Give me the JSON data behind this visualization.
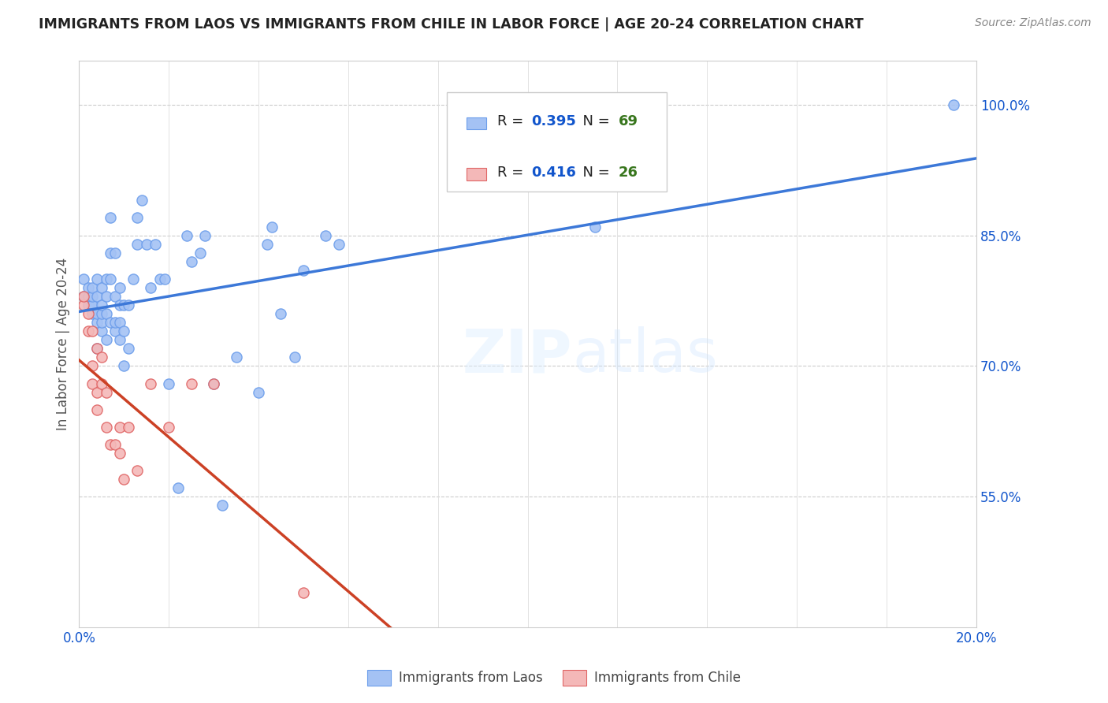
{
  "title": "IMMIGRANTS FROM LAOS VS IMMIGRANTS FROM CHILE IN LABOR FORCE | AGE 20-24 CORRELATION CHART",
  "source": "Source: ZipAtlas.com",
  "ylabel": "In Labor Force | Age 20-24",
  "xlim": [
    0.0,
    0.2
  ],
  "ylim": [
    0.4,
    1.05
  ],
  "yticks": [
    0.55,
    0.7,
    0.85,
    1.0
  ],
  "ytick_labels": [
    "55.0%",
    "70.0%",
    "85.0%",
    "100.0%"
  ],
  "xticks": [
    0.0,
    0.02,
    0.04,
    0.06,
    0.08,
    0.1,
    0.12,
    0.14,
    0.16,
    0.18,
    0.2
  ],
  "xtick_labels": [
    "0.0%",
    "",
    "",
    "",
    "",
    "",
    "",
    "",
    "",
    "",
    "20.0%"
  ],
  "laos_color": "#a4c2f4",
  "chile_color": "#f4b8b8",
  "laos_edge_color": "#6d9eeb",
  "chile_edge_color": "#e06666",
  "laos_line_color": "#3c78d8",
  "chile_line_color": "#cc4125",
  "laos_R": 0.395,
  "laos_N": 69,
  "chile_R": 0.416,
  "chile_N": 26,
  "watermark": "ZIPatlas",
  "legend_R_color": "#1155cc",
  "legend_N_color": "#38761d",
  "laos_x": [
    0.001,
    0.001,
    0.002,
    0.002,
    0.002,
    0.003,
    0.003,
    0.003,
    0.003,
    0.003,
    0.004,
    0.004,
    0.004,
    0.004,
    0.004,
    0.005,
    0.005,
    0.005,
    0.005,
    0.005,
    0.006,
    0.006,
    0.006,
    0.006,
    0.007,
    0.007,
    0.007,
    0.007,
    0.008,
    0.008,
    0.008,
    0.008,
    0.009,
    0.009,
    0.009,
    0.009,
    0.01,
    0.01,
    0.01,
    0.011,
    0.011,
    0.012,
    0.013,
    0.013,
    0.014,
    0.015,
    0.016,
    0.017,
    0.018,
    0.019,
    0.02,
    0.022,
    0.024,
    0.025,
    0.027,
    0.028,
    0.03,
    0.032,
    0.035,
    0.04,
    0.042,
    0.043,
    0.045,
    0.048,
    0.05,
    0.055,
    0.058,
    0.115,
    0.195
  ],
  "laos_y": [
    0.78,
    0.8,
    0.77,
    0.78,
    0.79,
    0.76,
    0.77,
    0.77,
    0.78,
    0.79,
    0.72,
    0.75,
    0.76,
    0.78,
    0.8,
    0.74,
    0.75,
    0.76,
    0.77,
    0.79,
    0.73,
    0.76,
    0.78,
    0.8,
    0.75,
    0.8,
    0.83,
    0.87,
    0.74,
    0.75,
    0.78,
    0.83,
    0.73,
    0.75,
    0.77,
    0.79,
    0.7,
    0.74,
    0.77,
    0.72,
    0.77,
    0.8,
    0.84,
    0.87,
    0.89,
    0.84,
    0.79,
    0.84,
    0.8,
    0.8,
    0.68,
    0.56,
    0.85,
    0.82,
    0.83,
    0.85,
    0.68,
    0.54,
    0.71,
    0.67,
    0.84,
    0.86,
    0.76,
    0.71,
    0.81,
    0.85,
    0.84,
    0.86,
    1.0
  ],
  "chile_x": [
    0.001,
    0.001,
    0.002,
    0.002,
    0.003,
    0.003,
    0.003,
    0.004,
    0.004,
    0.004,
    0.005,
    0.005,
    0.006,
    0.006,
    0.007,
    0.008,
    0.009,
    0.009,
    0.01,
    0.011,
    0.013,
    0.016,
    0.02,
    0.025,
    0.03,
    0.05
  ],
  "chile_y": [
    0.77,
    0.78,
    0.74,
    0.76,
    0.68,
    0.7,
    0.74,
    0.65,
    0.67,
    0.72,
    0.68,
    0.71,
    0.63,
    0.67,
    0.61,
    0.61,
    0.6,
    0.63,
    0.57,
    0.63,
    0.58,
    0.68,
    0.63,
    0.68,
    0.68,
    0.44
  ]
}
